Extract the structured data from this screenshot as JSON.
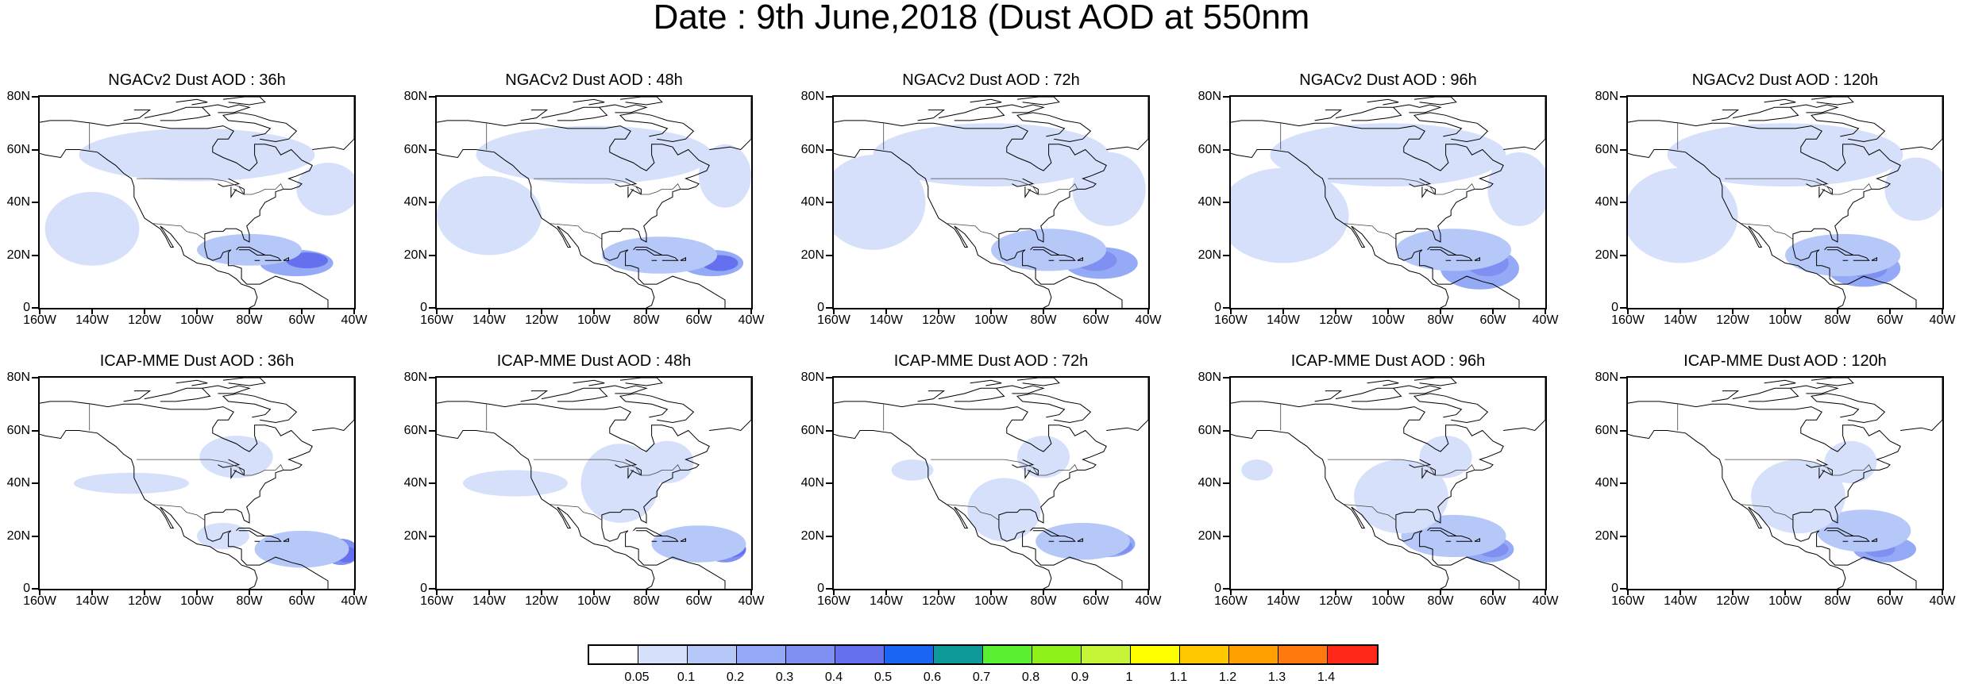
{
  "title": "Date : 9th June,2018 (Dust AOD at 550nm",
  "panels": [
    {
      "title": "NGACv2 Dust AOD : 36h",
      "blobs": [
        [
          -62,
          17,
          14,
          5,
          3
        ],
        [
          -58,
          18,
          8,
          3,
          5
        ],
        [
          -80,
          22,
          20,
          6,
          2
        ],
        [
          -100,
          58,
          45,
          10,
          1
        ],
        [
          -140,
          30,
          18,
          14,
          1
        ],
        [
          -50,
          45,
          12,
          10,
          1
        ]
      ]
    },
    {
      "title": "NGACv2 Dust AOD : 48h",
      "blobs": [
        [
          -55,
          17,
          12,
          5,
          3
        ],
        [
          -52,
          17,
          7,
          3,
          5
        ],
        [
          -75,
          20,
          22,
          7,
          2
        ],
        [
          -100,
          58,
          45,
          11,
          1
        ],
        [
          -140,
          35,
          20,
          15,
          1
        ],
        [
          -50,
          50,
          10,
          12,
          1
        ]
      ]
    },
    {
      "title": "NGACv2 Dust AOD : 72h",
      "blobs": [
        [
          -58,
          17,
          14,
          6,
          3
        ],
        [
          -60,
          18,
          8,
          4,
          4
        ],
        [
          -78,
          22,
          22,
          8,
          2
        ],
        [
          -100,
          58,
          45,
          12,
          1
        ],
        [
          -145,
          40,
          20,
          18,
          1
        ],
        [
          -55,
          45,
          14,
          14,
          1
        ]
      ]
    },
    {
      "title": "NGACv2 Dust AOD : 96h",
      "blobs": [
        [
          -65,
          15,
          15,
          8,
          3
        ],
        [
          -62,
          17,
          8,
          5,
          4
        ],
        [
          -75,
          22,
          22,
          8,
          2
        ],
        [
          -100,
          58,
          45,
          12,
          1
        ],
        [
          -140,
          35,
          25,
          18,
          1
        ],
        [
          -50,
          45,
          12,
          14,
          1
        ]
      ]
    },
    {
      "title": "NGACv2 Dust AOD : 120h",
      "blobs": [
        [
          -70,
          15,
          14,
          7,
          3
        ],
        [
          -68,
          15,
          7,
          4,
          4
        ],
        [
          -78,
          20,
          22,
          8,
          2
        ],
        [
          -100,
          58,
          45,
          12,
          1
        ],
        [
          -140,
          35,
          22,
          18,
          1
        ],
        [
          -50,
          45,
          12,
          12,
          1
        ]
      ]
    },
    {
      "title": "ICAP-MME Dust AOD : 36h",
      "blobs": [
        [
          -45,
          14,
          7,
          5,
          4
        ],
        [
          -43,
          13,
          4,
          3,
          5
        ],
        [
          -60,
          15,
          18,
          7,
          2
        ],
        [
          -90,
          20,
          10,
          5,
          1
        ],
        [
          -125,
          40,
          22,
          4,
          1
        ],
        [
          -85,
          50,
          14,
          8,
          1
        ]
      ]
    },
    {
      "title": "ICAP-MME Dust AOD : 48h",
      "blobs": [
        [
          -50,
          15,
          8,
          5,
          4
        ],
        [
          -47,
          15,
          5,
          3,
          5
        ],
        [
          -60,
          17,
          18,
          7,
          2
        ],
        [
          -90,
          40,
          15,
          15,
          1
        ],
        [
          -130,
          40,
          20,
          5,
          1
        ],
        [
          -72,
          48,
          10,
          8,
          1
        ]
      ]
    },
    {
      "title": "ICAP-MME Dust AOD : 72h",
      "blobs": [
        [
          -55,
          17,
          10,
          5,
          3
        ],
        [
          -52,
          16,
          6,
          3,
          4
        ],
        [
          -65,
          18,
          18,
          7,
          2
        ],
        [
          -95,
          30,
          14,
          12,
          1
        ],
        [
          -130,
          45,
          8,
          4,
          1
        ],
        [
          -80,
          50,
          10,
          8,
          1
        ]
      ]
    },
    {
      "title": "ICAP-MME Dust AOD : 96h",
      "blobs": [
        [
          -62,
          15,
          10,
          5,
          3
        ],
        [
          -60,
          15,
          6,
          3,
          4
        ],
        [
          -75,
          20,
          20,
          8,
          2
        ],
        [
          -95,
          35,
          18,
          14,
          1
        ],
        [
          -150,
          45,
          6,
          4,
          1
        ],
        [
          -78,
          50,
          10,
          8,
          1
        ]
      ]
    },
    {
      "title": "ICAP-MME Dust AOD : 120h",
      "blobs": [
        [
          -62,
          15,
          12,
          5,
          3
        ],
        [
          -64,
          15,
          6,
          3,
          4
        ],
        [
          -70,
          22,
          18,
          8,
          2
        ],
        [
          -95,
          35,
          18,
          14,
          1
        ],
        [
          -75,
          48,
          10,
          8,
          1
        ]
      ]
    }
  ],
  "axes": {
    "lon_ticks": [
      "160W",
      "140W",
      "120W",
      "100W",
      "80W",
      "60W",
      "40W"
    ],
    "lon_values": [
      -160,
      -140,
      -120,
      -100,
      -80,
      -60,
      -40
    ],
    "lat_ticks": [
      "80N",
      "60N",
      "40N",
      "20N",
      "0"
    ],
    "lat_values": [
      80,
      60,
      40,
      20,
      0
    ]
  },
  "colorbar": {
    "colors": [
      "#ffffff",
      "#d6e0fb",
      "#b6c8f8",
      "#94aaf6",
      "#7f8ff2",
      "#6470ee",
      "#1a66f4",
      "#0e9a9a",
      "#5cf033",
      "#90f01a",
      "#c6f538",
      "#ffff00",
      "#ffc800",
      "#ffa000",
      "#ff7810",
      "#ff2819"
    ],
    "labels": [
      "0.05",
      "0.1",
      "0.2",
      "0.3",
      "0.4",
      "0.5",
      "0.6",
      "0.7",
      "0.8",
      "0.9",
      "1",
      "1.1",
      "1.2",
      "1.3",
      "1.4"
    ]
  }
}
